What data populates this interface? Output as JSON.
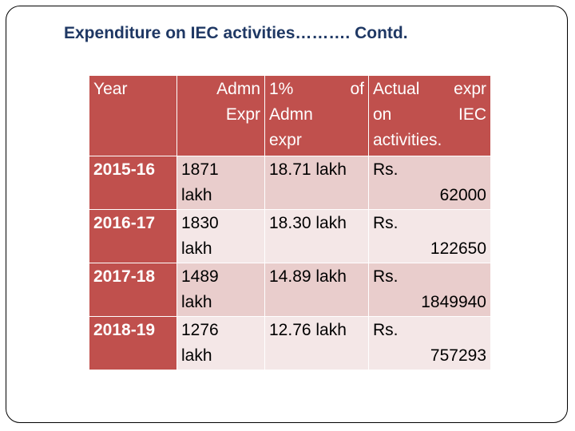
{
  "title": "Expenditure on IEC activities………. Contd.",
  "table": {
    "headers": {
      "year": "Year",
      "admn_expr": [
        "Admn",
        "Expr"
      ],
      "pct_admn": [
        [
          "1%",
          "of"
        ],
        "Admn",
        "expr"
      ],
      "actual": [
        [
          "Actual",
          "expr"
        ],
        [
          "on",
          "IEC"
        ],
        "activities."
      ]
    },
    "rows": [
      {
        "year": "2015-16",
        "admn": [
          "1871",
          "lakh"
        ],
        "pct": "18.71 lakh",
        "actual": [
          "Rs.",
          "62000"
        ]
      },
      {
        "year": "2016-17",
        "admn": [
          "1830",
          "lakh"
        ],
        "pct": "18.30 lakh",
        "actual": [
          "Rs.",
          "122650"
        ]
      },
      {
        "year": "2017-18",
        "admn": [
          "1489",
          "lakh"
        ],
        "pct": "14.89 lakh",
        "actual": [
          "Rs.",
          "1849940"
        ]
      },
      {
        "year": "2018-19",
        "admn": [
          "1276",
          "lakh"
        ],
        "pct": "12.76 lakh",
        "actual": [
          "Rs.",
          "757293"
        ]
      }
    ]
  },
  "colors": {
    "header": "#c0504d",
    "row_odd": "#e9cdcc",
    "row_even": "#f4e7e7",
    "title": "#1f3864"
  }
}
